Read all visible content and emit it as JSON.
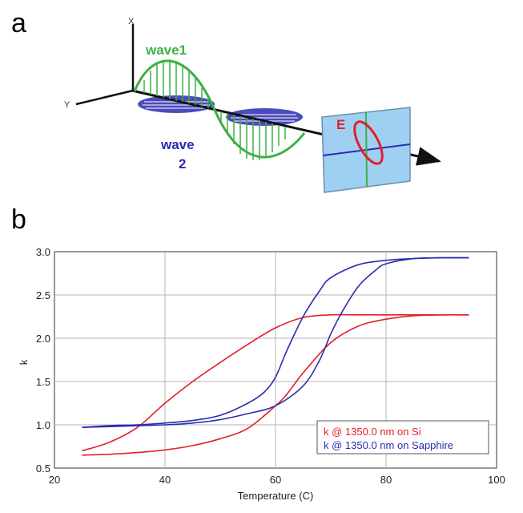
{
  "panels": {
    "a": "a",
    "b": "b"
  },
  "diagram": {
    "axis_x": "X",
    "axis_y": "Y",
    "wave1_label": "wave1",
    "wave2_label_line1": "wave",
    "wave2_label_line2": "2",
    "field_label": "E",
    "colors": {
      "wave1": "#3cb043",
      "wave2": "#2b2bb0",
      "field": "#e0202a",
      "plane": "#9fd0f2"
    }
  },
  "chart_data": {
    "type": "line",
    "xlabel": "Temperature (C)",
    "ylabel": "k",
    "xlim": [
      20,
      100
    ],
    "ylim": [
      0.5,
      3.0
    ],
    "xticks": [
      "20",
      "40",
      "60",
      "80",
      "100"
    ],
    "yticks": [
      "0.5",
      "1.0",
      "1.5",
      "2.0",
      "2.5",
      "3.0"
    ],
    "grid": true,
    "legend_position": "bottom-right",
    "series": [
      {
        "name": "k @ 1350.0 nm on Si",
        "color": "#e0202a",
        "branches": [
          {
            "x": [
              25,
              30,
              35,
              40,
              45,
              50,
              55,
              60,
              65,
              70,
              75,
              80,
              85,
              90,
              95
            ],
            "y": [
              0.7,
              0.8,
              0.97,
              1.25,
              1.5,
              1.72,
              1.93,
              2.12,
              2.24,
              2.27,
              2.27,
              2.27,
              2.27,
              2.27,
              2.27
            ]
          },
          {
            "x": [
              25,
              30,
              35,
              40,
              45,
              50,
              55,
              60,
              62,
              65,
              70,
              75,
              80,
              85,
              90,
              95
            ],
            "y": [
              0.65,
              0.66,
              0.68,
              0.71,
              0.76,
              0.84,
              0.96,
              1.22,
              1.35,
              1.6,
              1.95,
              2.14,
              2.22,
              2.26,
              2.27,
              2.27
            ]
          }
        ]
      },
      {
        "name": "k @ 1350.0 nm on Sapphire",
        "color": "#2b2bb0",
        "branches": [
          {
            "x": [
              25,
              30,
              35,
              40,
              45,
              50,
              55,
              58,
              60,
              62,
              65,
              68,
              70,
              75,
              80,
              85,
              90,
              95
            ],
            "y": [
              0.97,
              0.99,
              1.0,
              1.02,
              1.05,
              1.11,
              1.25,
              1.38,
              1.55,
              1.85,
              2.25,
              2.55,
              2.7,
              2.85,
              2.9,
              2.92,
              2.93,
              2.93
            ]
          },
          {
            "x": [
              25,
              30,
              35,
              40,
              45,
              50,
              55,
              60,
              65,
              68,
              70,
              72,
              75,
              78,
              80,
              85,
              90,
              95
            ],
            "y": [
              0.97,
              0.98,
              0.99,
              1.0,
              1.02,
              1.06,
              1.13,
              1.22,
              1.45,
              1.75,
              2.05,
              2.3,
              2.6,
              2.78,
              2.86,
              2.92,
              2.93,
              2.93
            ]
          }
        ]
      }
    ]
  }
}
